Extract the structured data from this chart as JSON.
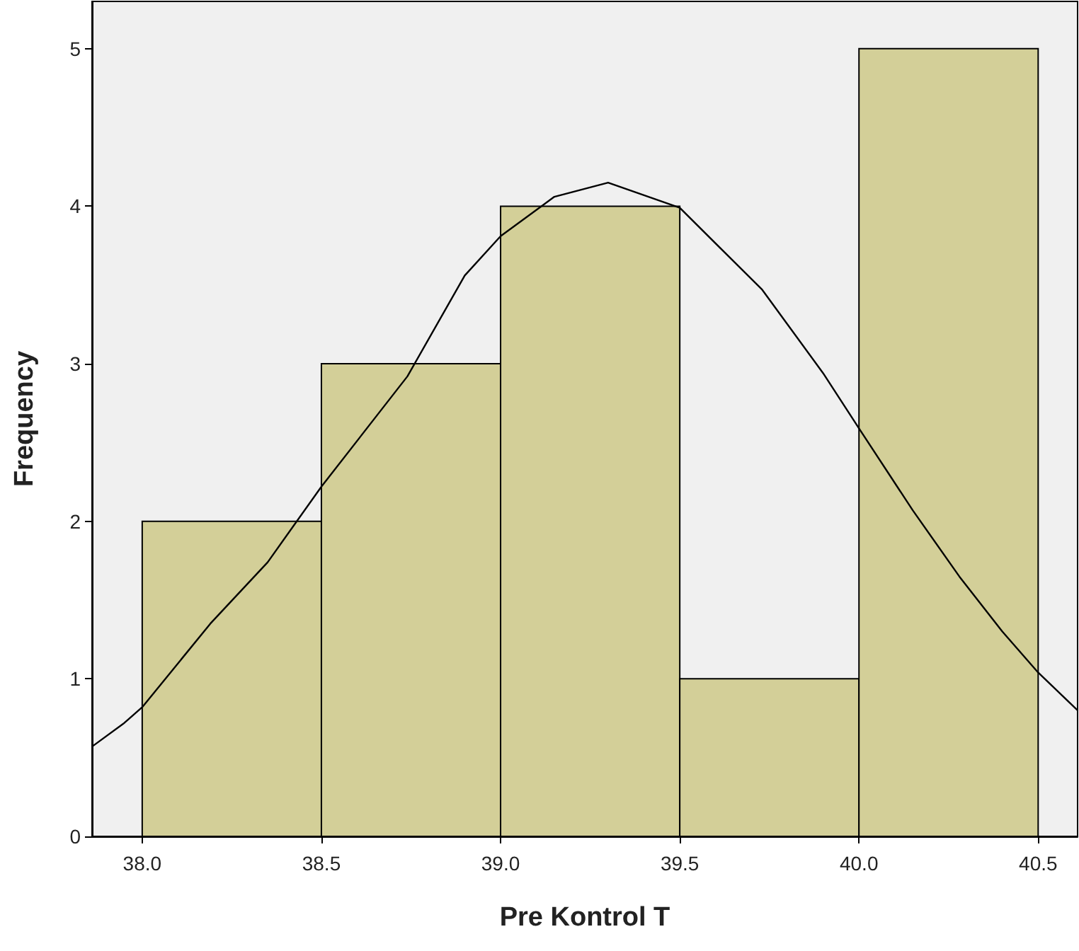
{
  "chart_data": {
    "type": "histogram",
    "xlabel": "Pre Kontrol T",
    "ylabel": "Frequency",
    "bins": [
      38.0,
      38.5,
      39.0,
      39.5,
      40.0,
      40.5
    ],
    "values": [
      2,
      3,
      4,
      1,
      5
    ],
    "color": "#d3cf98",
    "xlim": [
      37.86,
      40.61
    ],
    "xticks": [
      {
        "value": 38,
        "label": "38.0"
      },
      {
        "value": 38.5,
        "label": "38.5"
      },
      {
        "value": 39,
        "label": "39.0"
      },
      {
        "value": 39.5,
        "label": "39.5"
      },
      {
        "value": 40,
        "label": "40.0"
      },
      {
        "value": 40.5,
        "label": "40.5"
      }
    ],
    "ylim": [
      0,
      5.3
    ],
    "yticks": [
      0,
      1,
      2,
      3,
      4,
      5
    ],
    "series": [
      {
        "type": "line",
        "color": "#000000",
        "x": [
          37.86,
          37.95,
          38.0,
          38.19,
          38.35,
          38.5,
          38.74,
          38.9,
          39.0,
          39.15,
          39.3,
          39.5,
          39.73,
          39.9,
          40.0,
          40.15,
          40.28,
          40.4,
          40.5,
          40.61
        ],
        "values": [
          0.57,
          0.72,
          0.82,
          1.35,
          1.74,
          2.22,
          2.92,
          3.56,
          3.81,
          4.06,
          4.15,
          3.99,
          3.47,
          2.94,
          2.59,
          2.07,
          1.65,
          1.3,
          1.04,
          0.8
        ]
      }
    ]
  }
}
